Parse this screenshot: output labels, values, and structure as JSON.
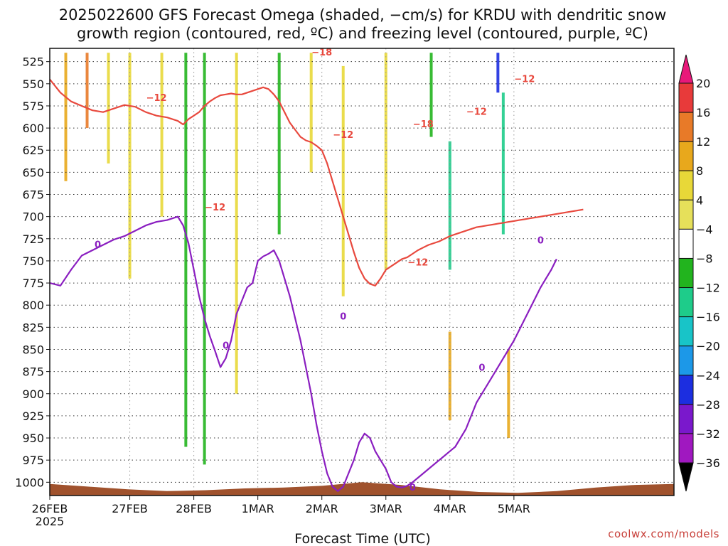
{
  "title": {
    "line1": "2025022600 GFS Forecast Omega (shaded, −cm/s) for KRDU with dendritic snow",
    "line2": "growth region (contoured, red, ºC) and freezing level (contoured, purple, ºC)"
  },
  "credit": "coolwx.com/models",
  "chart_data": {
    "type": "heatmap",
    "xlabel": "Forecast Time (UTC)",
    "ylabel": "",
    "x_range_hours": [
      0,
      234
    ],
    "x_ticks": [
      {
        "hour": 0,
        "label": "26FEB",
        "sublabel": "2025"
      },
      {
        "hour": 30,
        "label": "27FEB"
      },
      {
        "hour": 54,
        "label": "28FEB"
      },
      {
        "hour": 78,
        "label": "1MAR"
      },
      {
        "hour": 102,
        "label": "2MAR"
      },
      {
        "hour": 126,
        "label": "3MAR"
      },
      {
        "hour": 150,
        "label": "4MAR"
      },
      {
        "hour": 174,
        "label": "5MAR"
      }
    ],
    "y_axis": {
      "units": "hPa",
      "inverted": true,
      "range": [
        1015,
        510
      ],
      "ticks": [
        525,
        550,
        575,
        600,
        625,
        650,
        675,
        700,
        725,
        750,
        775,
        800,
        825,
        850,
        875,
        900,
        925,
        950,
        975,
        1000
      ]
    },
    "grid": true,
    "colorbar": {
      "ticks": [
        "20",
        "16",
        "12",
        "8",
        "4",
        "−4",
        "−8",
        "−12",
        "−16",
        "−20",
        "−24",
        "−28",
        "−32",
        "−36"
      ],
      "colors": [
        "#e8187a",
        "#e83a3a",
        "#e87a28",
        "#e8a81c",
        "#e8d838",
        "#e6e05a",
        "#ffffff",
        "#22b41e",
        "#1ecc8a",
        "#18c4c8",
        "#1c98e8",
        "#1c2ee0",
        "#7a18cc",
        "#a018c0",
        "#b0b0b0",
        "#000000"
      ]
    },
    "omega_shading": [
      {
        "h": 6,
        "p0": 515,
        "p1": 660,
        "v": 8
      },
      {
        "h": 14,
        "p0": 515,
        "p1": 600,
        "v": 14
      },
      {
        "h": 22,
        "p0": 515,
        "p1": 640,
        "v": 6
      },
      {
        "h": 30,
        "p0": 515,
        "p1": 770,
        "v": 6
      },
      {
        "h": 42,
        "p0": 515,
        "p1": 700,
        "v": 6
      },
      {
        "h": 51,
        "p0": 515,
        "p1": 960,
        "v": -6
      },
      {
        "h": 58,
        "p0": 515,
        "p1": 980,
        "v": -6
      },
      {
        "h": 70,
        "p0": 515,
        "p1": 900,
        "v": 6
      },
      {
        "h": 86,
        "p0": 515,
        "p1": 720,
        "v": -6
      },
      {
        "h": 98,
        "p0": 515,
        "p1": 650,
        "v": 6
      },
      {
        "h": 110,
        "p0": 530,
        "p1": 790,
        "v": 6
      },
      {
        "h": 126,
        "p0": 515,
        "p1": 760,
        "v": 6
      },
      {
        "h": 143,
        "p0": 515,
        "p1": 610,
        "v": -6
      },
      {
        "h": 150,
        "p0": 615,
        "p1": 760,
        "v": -10
      },
      {
        "h": 150,
        "p0": 830,
        "p1": 930,
        "v": 10
      },
      {
        "h": 168,
        "p0": 515,
        "p1": 560,
        "v": -22
      },
      {
        "h": 170,
        "p0": 560,
        "p1": 720,
        "v": -8
      },
      {
        "h": 172,
        "p0": 850,
        "p1": 950,
        "v": 10
      }
    ],
    "series": [
      {
        "name": "",
        "color": "#e8493e",
        "level_label": "−12",
        "x": [
          0,
          4,
          8,
          12,
          16,
          20,
          24,
          28,
          32,
          36,
          40,
          44,
          48,
          50,
          52,
          54,
          56,
          58,
          60,
          62,
          64,
          66,
          68,
          70,
          72,
          74,
          76,
          78,
          80,
          82,
          84,
          86,
          88,
          90,
          92,
          94,
          96,
          98,
          100,
          102,
          104,
          106,
          108,
          110,
          112,
          114,
          116,
          118,
          120,
          122,
          124,
          126,
          128,
          130,
          132,
          134,
          136,
          138,
          140,
          142,
          144,
          146,
          148,
          150,
          152,
          154,
          156,
          158,
          160,
          162,
          164,
          166,
          168,
          170,
          172,
          174,
          176,
          178,
          180,
          182,
          184,
          186,
          188,
          190,
          192,
          194,
          196,
          198,
          200
        ],
        "y": [
          545,
          560,
          570,
          575,
          580,
          582,
          578,
          574,
          576,
          582,
          586,
          588,
          592,
          596,
          590,
          586,
          582,
          575,
          570,
          566,
          563,
          562,
          561,
          562,
          562,
          560,
          558,
          556,
          554,
          556,
          562,
          570,
          582,
          594,
          602,
          610,
          614,
          616,
          620,
          625,
          640,
          660,
          680,
          700,
          720,
          740,
          758,
          770,
          776,
          778,
          770,
          760,
          756,
          752,
          748,
          746,
          742,
          738,
          735,
          732,
          730,
          728,
          725,
          722,
          720,
          718,
          716,
          714,
          712,
          711,
          710,
          709,
          708,
          707,
          706,
          705,
          704,
          703,
          702,
          701,
          700,
          699,
          698,
          697,
          696,
          695,
          694,
          693,
          692
        ]
      },
      {
        "name": "",
        "color": "#8a1ec0",
        "level_label": "0",
        "x": [
          0,
          4,
          8,
          12,
          16,
          20,
          24,
          28,
          32,
          36,
          40,
          44,
          48,
          50,
          52,
          54,
          56,
          58,
          60,
          62,
          64,
          66,
          68,
          70,
          72,
          74,
          76,
          78,
          80,
          82,
          84,
          86,
          88,
          90,
          92,
          94,
          96,
          98,
          100,
          102,
          104,
          106,
          108,
          110,
          112,
          114,
          116,
          118,
          120,
          122,
          124,
          126,
          128,
          130,
          132,
          134,
          136,
          138,
          140,
          142,
          144,
          146,
          148,
          150,
          152,
          154,
          156,
          158,
          160,
          162,
          164,
          166,
          168,
          170,
          172,
          174,
          176,
          178,
          180,
          182,
          184,
          186,
          188,
          190
        ],
        "y": [
          775,
          778,
          760,
          744,
          738,
          732,
          726,
          722,
          716,
          710,
          706,
          704,
          700,
          710,
          730,
          760,
          790,
          815,
          835,
          852,
          870,
          860,
          840,
          810,
          795,
          780,
          775,
          750,
          745,
          742,
          738,
          750,
          770,
          790,
          815,
          840,
          870,
          900,
          935,
          965,
          990,
          1005,
          1010,
          1005,
          990,
          975,
          955,
          945,
          950,
          965,
          975,
          985,
          1000,
          1005,
          1006,
          1004,
          1000,
          995,
          990,
          985,
          980,
          975,
          970,
          965,
          960,
          950,
          940,
          925,
          910,
          900,
          890,
          880,
          870,
          860,
          850,
          840,
          828,
          816,
          804,
          792,
          780,
          770,
          760,
          748
        ]
      }
    ],
    "contour_labels": [
      {
        "h": 40,
        "p": 566,
        "text": "−12",
        "color": "#e8493e"
      },
      {
        "h": 62,
        "p": 690,
        "text": "−12",
        "color": "#e8493e"
      },
      {
        "h": 102,
        "p": 515,
        "text": "−18",
        "color": "#e8493e"
      },
      {
        "h": 110,
        "p": 608,
        "text": "−12",
        "color": "#e8493e"
      },
      {
        "h": 140,
        "p": 596,
        "text": "−18",
        "color": "#e8493e"
      },
      {
        "h": 138,
        "p": 752,
        "text": "−12",
        "color": "#e8493e"
      },
      {
        "h": 160,
        "p": 582,
        "text": "−12",
        "color": "#e8493e"
      },
      {
        "h": 178,
        "p": 545,
        "text": "−12",
        "color": "#e8493e"
      },
      {
        "h": 18,
        "p": 732,
        "text": "0",
        "color": "#8a1ec0"
      },
      {
        "h": 66,
        "p": 846,
        "text": "0",
        "color": "#8a1ec0"
      },
      {
        "h": 110,
        "p": 813,
        "text": "0",
        "color": "#8a1ec0"
      },
      {
        "h": 136,
        "p": 1006,
        "text": "0",
        "color": "#8a1ec0"
      },
      {
        "h": 162,
        "p": 871,
        "text": "0",
        "color": "#8a1ec0"
      },
      {
        "h": 184,
        "p": 727,
        "text": "0",
        "color": "#8a1ec0"
      }
    ],
    "surface_color": "#a0522d",
    "surface_pressure": [
      1002,
      1005,
      1008,
      1010,
      1009,
      1007,
      1006,
      1004,
      1000,
      1003,
      1008,
      1011,
      1012,
      1010,
      1006,
      1003,
      1002
    ]
  }
}
